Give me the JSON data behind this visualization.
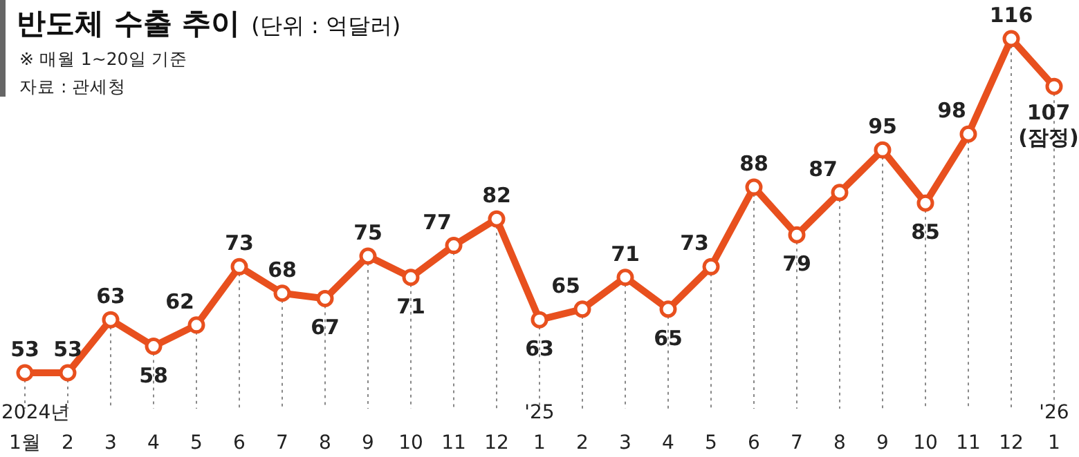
{
  "chart_data": {
    "type": "line",
    "title": "반도체 수출 추이",
    "subtitle": "(단위 : 억달러)",
    "annotations": [
      "※ 매월 1~20일 기준",
      "자료 : 관세청"
    ],
    "categories": [
      "2024년\n1월",
      "2",
      "3",
      "4",
      "5",
      "6",
      "7",
      "8",
      "9",
      "10",
      "11",
      "12",
      "'25\n1",
      "2",
      "3",
      "4",
      "5",
      "6",
      "7",
      "8",
      "9",
      "10",
      "11",
      "12",
      "'26\n1"
    ],
    "series": [
      {
        "color": "#e8501e",
        "values": [
          53,
          53,
          63,
          58,
          62,
          73,
          68,
          67,
          75,
          71,
          77,
          82,
          63,
          65,
          71,
          65,
          73,
          88,
          79,
          87,
          95,
          85,
          98,
          116,
          107
        ]
      }
    ],
    "data_labels": true,
    "value_labels": [
      "53",
      "53",
      "63",
      "58",
      "62",
      "73",
      "68",
      "67",
      "75",
      "71",
      "77",
      "82",
      "63",
      "65",
      "71",
      "65",
      "73",
      "88",
      "79",
      "87",
      "95",
      "85",
      "98",
      "116",
      "107\n(잠정)"
    ],
    "marker": "circle",
    "line_style": "solid",
    "grid": "x"
  }
}
